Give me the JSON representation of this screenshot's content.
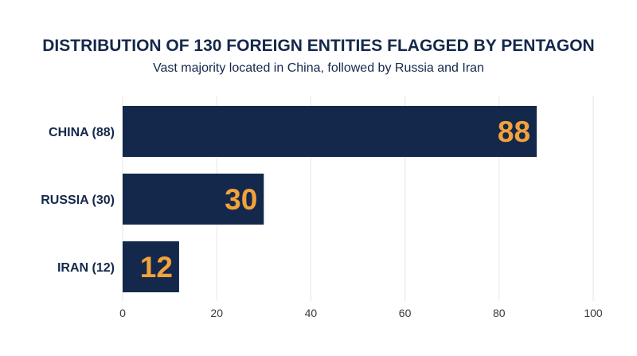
{
  "colors": {
    "bar": "#14284b",
    "label": "#f2a23a",
    "text": "#14284b",
    "grid": "#e6e6e6"
  },
  "chart_data": {
    "type": "bar",
    "orientation": "horizontal",
    "title": "DISTRIBUTION OF 130 FOREIGN ENTITIES FLAGGED BY PENTAGON",
    "subtitle": "Vast majority located in China, followed by Russia and Iran",
    "categories": [
      "CHINA (88)",
      "RUSSIA (30)",
      "IRAN (12)"
    ],
    "values": [
      88,
      30,
      12
    ],
    "data_labels": [
      "88",
      "30",
      "12"
    ],
    "xlim": [
      0,
      100
    ],
    "xticks": [
      0,
      20,
      40,
      60,
      80,
      100
    ],
    "tick_labels": [
      "0",
      "20",
      "40",
      "60",
      "80",
      "100"
    ],
    "grid": true,
    "legend": "none"
  }
}
